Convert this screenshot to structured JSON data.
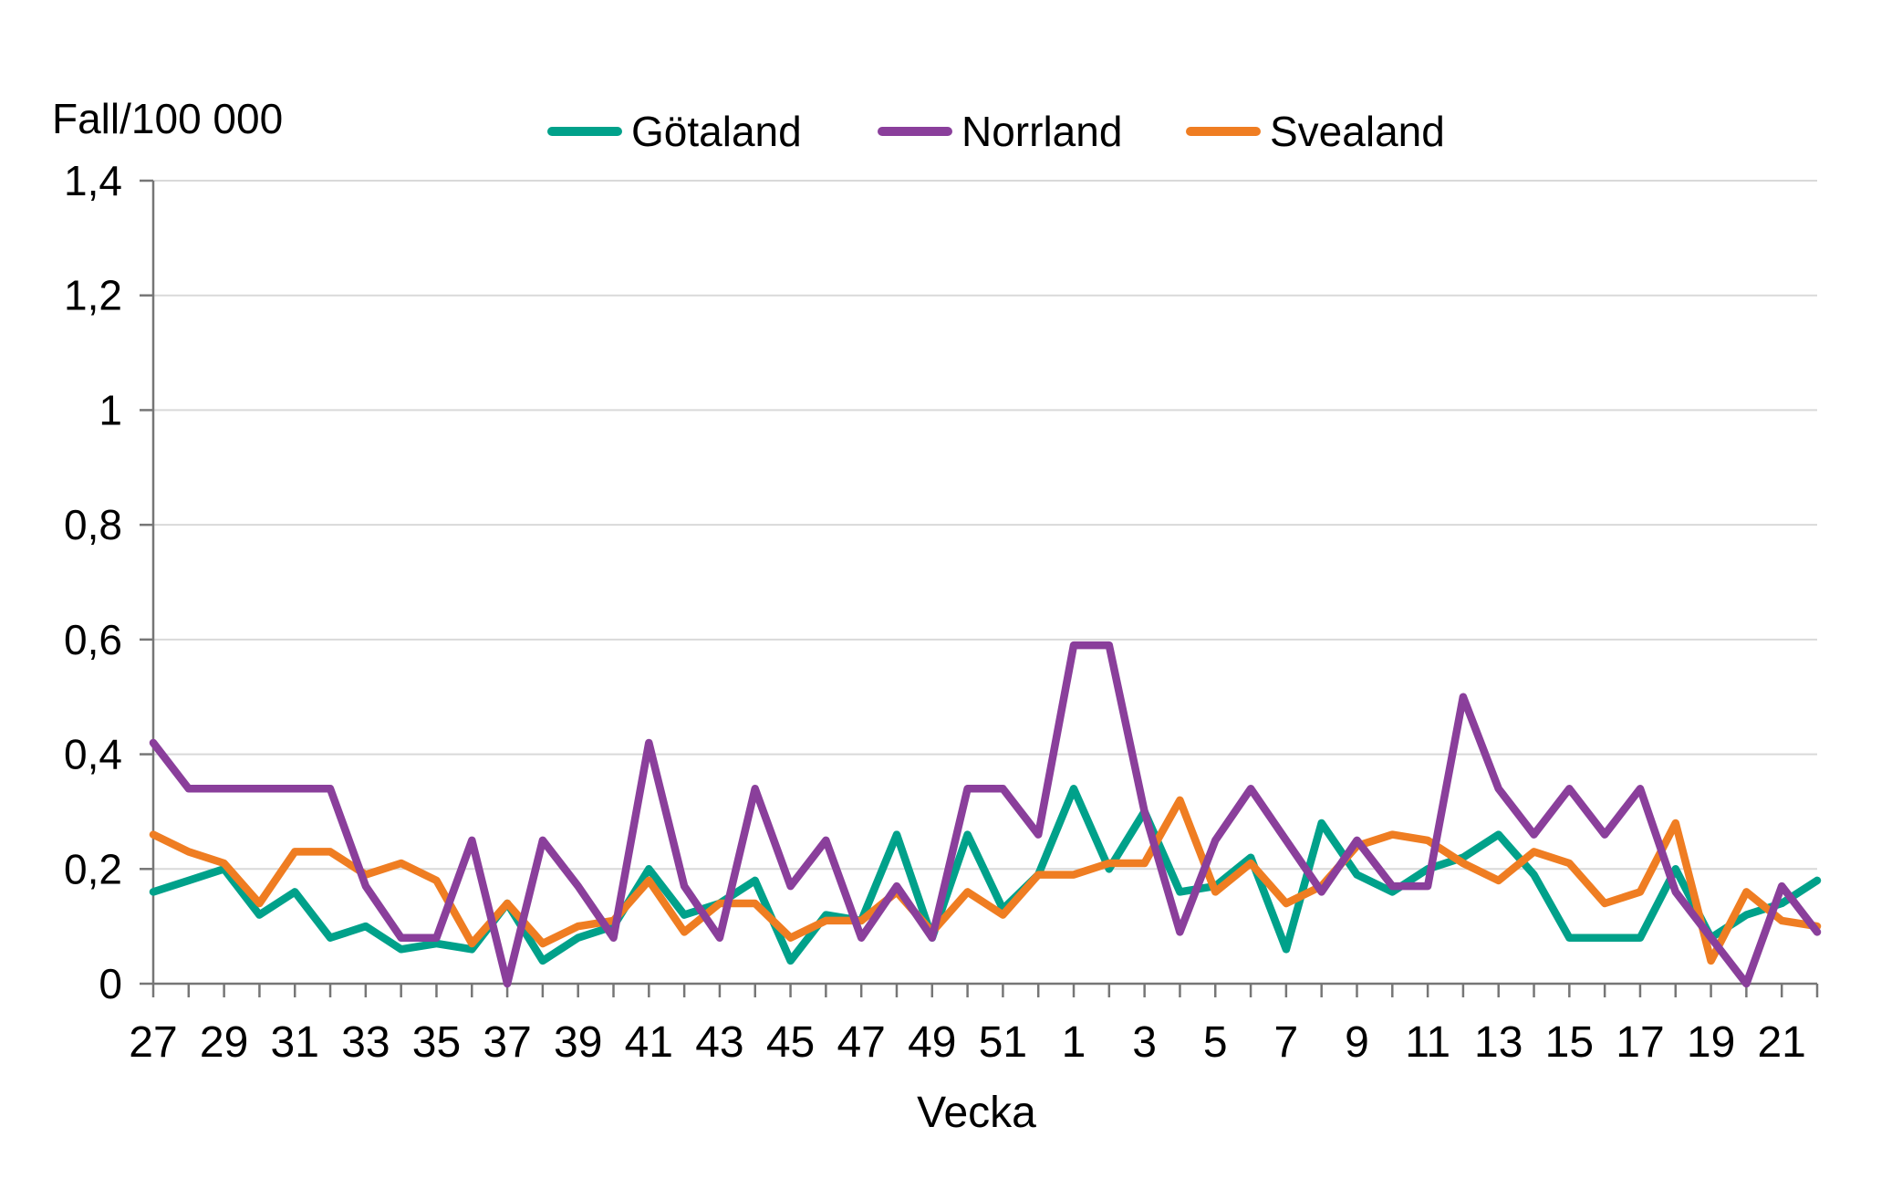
{
  "title": "Fall/100 000",
  "xlabel": "Vecka",
  "style": {
    "axis_line_color": "#767676",
    "grid_color": "#d9d9d9",
    "text_color": "#000000",
    "background": "#ffffff"
  },
  "chart_data": {
    "type": "line",
    "title": "Fall/100 000",
    "xlabel": "Vecka",
    "ylabel": "Fall/100 000",
    "ylim": [
      0,
      1.4
    ],
    "ytick_step": 0.2,
    "ytick_labels": [
      "0",
      "0,2",
      "0,4",
      "0,6",
      "0,8",
      "1",
      "1,2",
      "1,4"
    ],
    "grid": "horizontal",
    "legend_position": "top",
    "categories": [
      "27",
      "28",
      "29",
      "30",
      "31",
      "32",
      "33",
      "34",
      "35",
      "36",
      "37",
      "38",
      "39",
      "40",
      "41",
      "42",
      "43",
      "44",
      "45",
      "46",
      "47",
      "48",
      "49",
      "50",
      "51",
      "52",
      "1",
      "2",
      "3",
      "4",
      "5",
      "6",
      "7",
      "8",
      "9",
      "10",
      "11",
      "12",
      "13",
      "14",
      "15",
      "16",
      "17",
      "18",
      "19",
      "20",
      "21",
      "22"
    ],
    "xtick_labels_shown": [
      "27",
      "29",
      "31",
      "33",
      "35",
      "37",
      "39",
      "41",
      "43",
      "45",
      "47",
      "49",
      "51",
      "1",
      "3",
      "5",
      "7",
      "9",
      "11",
      "13",
      "15",
      "17",
      "19",
      "21"
    ],
    "series": [
      {
        "name": "Götaland",
        "color": "#00a18a",
        "values": [
          0.16,
          0.18,
          0.2,
          0.12,
          0.16,
          0.08,
          0.1,
          0.06,
          0.07,
          0.06,
          0.14,
          0.04,
          0.08,
          0.1,
          0.2,
          0.12,
          0.14,
          0.18,
          0.04,
          0.12,
          0.11,
          0.26,
          0.08,
          0.26,
          0.13,
          0.19,
          0.34,
          0.2,
          0.3,
          0.16,
          0.17,
          0.22,
          0.06,
          0.28,
          0.19,
          0.16,
          0.2,
          0.22,
          0.26,
          0.19,
          0.08,
          0.08,
          0.08,
          0.2,
          0.08,
          0.12,
          0.14,
          0.18
        ]
      },
      {
        "name": "Norrland",
        "color": "#8a3f9b",
        "values": [
          0.42,
          0.34,
          0.34,
          0.34,
          0.34,
          0.34,
          0.17,
          0.08,
          0.08,
          0.25,
          0.0,
          0.25,
          0.17,
          0.08,
          0.42,
          0.17,
          0.08,
          0.34,
          0.17,
          0.25,
          0.08,
          0.17,
          0.08,
          0.34,
          0.34,
          0.26,
          0.59,
          0.59,
          0.3,
          0.09,
          0.25,
          0.34,
          0.25,
          0.16,
          0.25,
          0.17,
          0.17,
          0.5,
          0.34,
          0.26,
          0.34,
          0.26,
          0.34,
          0.16,
          0.08,
          0.0,
          0.17,
          0.09
        ]
      },
      {
        "name": "Svealand",
        "color": "#ef7d22",
        "values": [
          0.26,
          0.23,
          0.21,
          0.14,
          0.23,
          0.23,
          0.19,
          0.21,
          0.18,
          0.07,
          0.14,
          0.07,
          0.1,
          0.11,
          0.18,
          0.09,
          0.14,
          0.14,
          0.08,
          0.11,
          0.11,
          0.16,
          0.09,
          0.16,
          0.12,
          0.19,
          0.19,
          0.21,
          0.21,
          0.32,
          0.16,
          0.21,
          0.14,
          0.17,
          0.24,
          0.26,
          0.25,
          0.21,
          0.18,
          0.23,
          0.21,
          0.14,
          0.16,
          0.28,
          0.04,
          0.16,
          0.11,
          0.1
        ]
      }
    ]
  }
}
